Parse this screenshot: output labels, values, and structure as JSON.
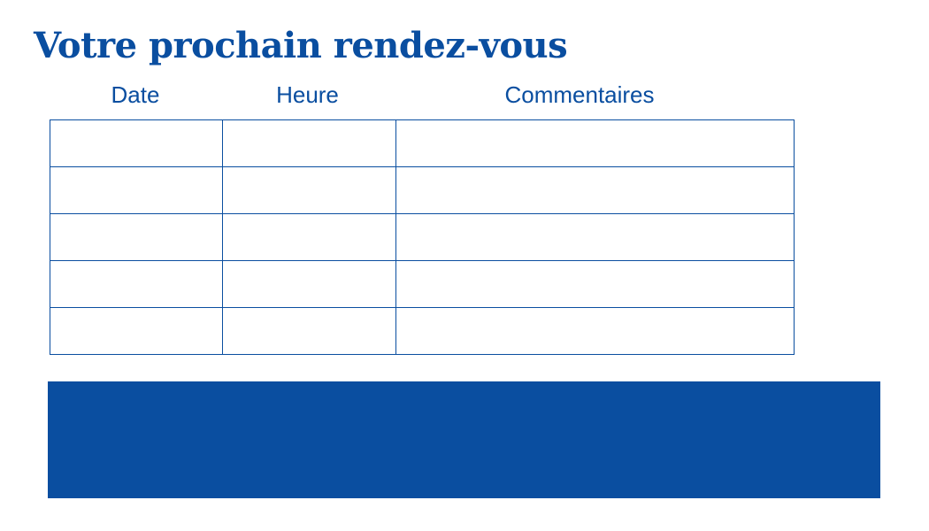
{
  "title": "Votre prochain rendez-vous",
  "table": {
    "headers": [
      "Date",
      "Heure",
      "Commentaires"
    ],
    "rows": [
      [
        "",
        "",
        ""
      ],
      [
        "",
        "",
        ""
      ],
      [
        "",
        "",
        ""
      ],
      [
        "",
        "",
        ""
      ],
      [
        "",
        "",
        ""
      ]
    ]
  },
  "colors": {
    "accent": "#0a4ea0"
  }
}
